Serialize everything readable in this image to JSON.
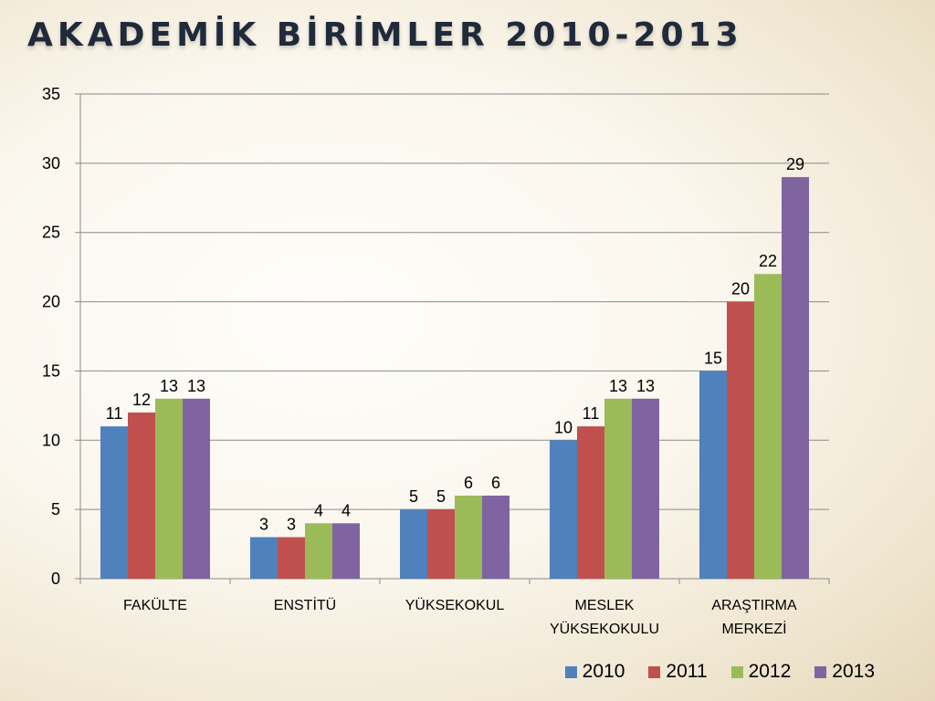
{
  "title": "AKADEMİK BİRİMLER 2010-2013",
  "chart_data": {
    "type": "bar",
    "title": "",
    "xlabel": "",
    "ylabel": "",
    "ylim": [
      0,
      35
    ],
    "yticks": [
      0,
      5,
      10,
      15,
      20,
      25,
      30,
      35
    ],
    "grid": true,
    "legend_position": "bottom-right",
    "categories": [
      [
        "FAKÜLTE"
      ],
      [
        "ENSTİTÜ"
      ],
      [
        "YÜKSEKOKUL"
      ],
      [
        "MESLEK",
        "YÜKSEKOKULU"
      ],
      [
        "ARAŞTIRMA",
        "MERKEZİ"
      ]
    ],
    "series": [
      {
        "name": "2010",
        "color": "#4f81bd",
        "values": [
          11,
          3,
          5,
          10,
          15
        ]
      },
      {
        "name": "2011",
        "color": "#c0504d",
        "values": [
          12,
          3,
          5,
          11,
          20
        ]
      },
      {
        "name": "2012",
        "color": "#9bbb59",
        "values": [
          13,
          4,
          6,
          13,
          22
        ]
      },
      {
        "name": "2013",
        "color": "#8064a2",
        "values": [
          13,
          4,
          6,
          13,
          29
        ]
      }
    ]
  }
}
